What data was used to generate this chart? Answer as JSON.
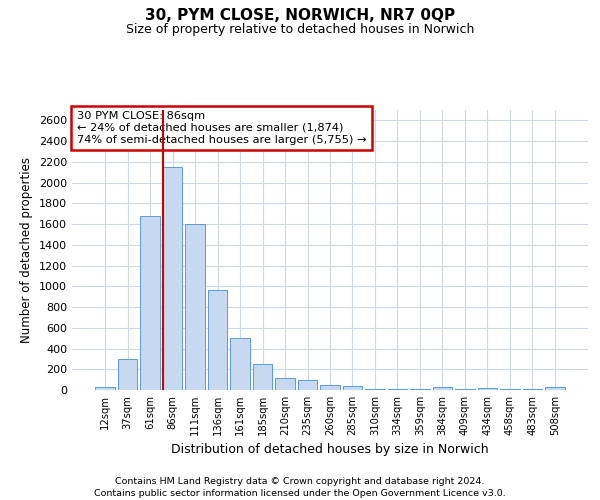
{
  "title": "30, PYM CLOSE, NORWICH, NR7 0QP",
  "subtitle": "Size of property relative to detached houses in Norwich",
  "xlabel": "Distribution of detached houses by size in Norwich",
  "ylabel": "Number of detached properties",
  "categories": [
    "12sqm",
    "37sqm",
    "61sqm",
    "86sqm",
    "111sqm",
    "136sqm",
    "161sqm",
    "185sqm",
    "210sqm",
    "235sqm",
    "260sqm",
    "285sqm",
    "310sqm",
    "334sqm",
    "359sqm",
    "384sqm",
    "409sqm",
    "434sqm",
    "458sqm",
    "483sqm",
    "508sqm"
  ],
  "values": [
    25,
    300,
    1675,
    2150,
    1600,
    960,
    505,
    250,
    120,
    100,
    50,
    35,
    5,
    5,
    5,
    25,
    5,
    20,
    5,
    5,
    25
  ],
  "bar_color": "#c6d9f0",
  "bar_edge_color": "#5b9bd5",
  "vline_color": "#cc0000",
  "vline_index": 3,
  "annotation_text": "30 PYM CLOSE: 86sqm\n← 24% of detached houses are smaller (1,874)\n74% of semi-detached houses are larger (5,755) →",
  "annotation_box_facecolor": "#ffffff",
  "annotation_box_edgecolor": "#cc0000",
  "ylim": [
    0,
    2700
  ],
  "yticks": [
    0,
    200,
    400,
    600,
    800,
    1000,
    1200,
    1400,
    1600,
    1800,
    2000,
    2200,
    2400,
    2600
  ],
  "grid_color": "#d0d8e8",
  "footer1": "Contains HM Land Registry data © Crown copyright and database right 2024.",
  "footer2": "Contains public sector information licensed under the Open Government Licence v3.0.",
  "bg_color": "#ffffff",
  "plot_bg_color": "#ffffff"
}
